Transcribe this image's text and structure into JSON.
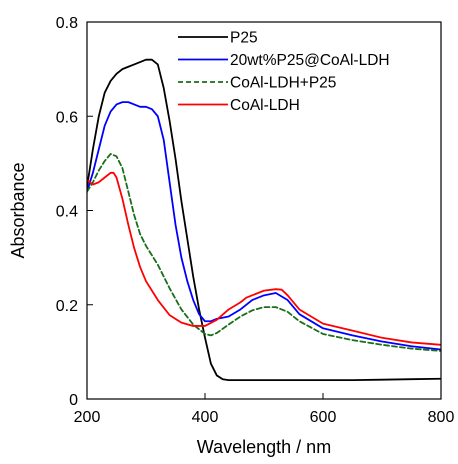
{
  "chart_data": {
    "type": "line",
    "title": "",
    "xlabel": "Wavelength / nm",
    "ylabel": "Absorbance",
    "xlim": [
      200,
      800
    ],
    "ylim": [
      0,
      0.8
    ],
    "xticks": [
      200,
      400,
      600,
      800
    ],
    "xtick_labels": [
      "200",
      "400",
      "600",
      "800"
    ],
    "yticks": [
      0,
      0.2,
      0.4,
      0.6,
      0.8
    ],
    "ytick_labels": [
      "0",
      "0.2",
      "0.4",
      "0.6",
      "0.8"
    ],
    "grid": false,
    "legend_position": "top-right",
    "series": [
      {
        "name": "P25",
        "color": "#000000",
        "dash": "solid",
        "x": [
          200,
          210,
          220,
          230,
          240,
          250,
          260,
          270,
          280,
          290,
          300,
          310,
          320,
          330,
          340,
          350,
          360,
          370,
          380,
          390,
          400,
          410,
          420,
          430,
          440,
          460,
          500,
          550,
          600,
          650,
          700,
          750,
          800
        ],
        "y": [
          0.45,
          0.53,
          0.6,
          0.65,
          0.675,
          0.69,
          0.7,
          0.705,
          0.71,
          0.715,
          0.72,
          0.72,
          0.71,
          0.66,
          0.59,
          0.51,
          0.42,
          0.34,
          0.26,
          0.19,
          0.13,
          0.075,
          0.05,
          0.042,
          0.04,
          0.04,
          0.04,
          0.04,
          0.04,
          0.04,
          0.041,
          0.042,
          0.043
        ]
      },
      {
        "name": "20wt%P25@CoAl-LDH",
        "color": "#0000ff",
        "dash": "solid",
        "x": [
          200,
          210,
          220,
          230,
          240,
          250,
          260,
          270,
          280,
          290,
          300,
          310,
          320,
          330,
          340,
          350,
          360,
          370,
          380,
          390,
          400,
          410,
          420,
          440,
          460,
          480,
          500,
          520,
          540,
          560,
          600,
          650,
          700,
          750,
          800
        ],
        "y": [
          0.44,
          0.48,
          0.53,
          0.58,
          0.61,
          0.625,
          0.63,
          0.63,
          0.625,
          0.62,
          0.62,
          0.615,
          0.6,
          0.55,
          0.46,
          0.37,
          0.3,
          0.25,
          0.21,
          0.18,
          0.165,
          0.165,
          0.17,
          0.175,
          0.19,
          0.21,
          0.22,
          0.225,
          0.21,
          0.18,
          0.15,
          0.135,
          0.122,
          0.112,
          0.105
        ]
      },
      {
        "name": "CoAl-LDH+P25",
        "color": "#1a6e1a",
        "dash": "dashed",
        "x": [
          200,
          210,
          220,
          230,
          240,
          250,
          260,
          270,
          280,
          290,
          300,
          320,
          340,
          360,
          380,
          400,
          410,
          420,
          440,
          460,
          480,
          500,
          520,
          540,
          560,
          600,
          650,
          700,
          750,
          800
        ],
        "y": [
          0.44,
          0.46,
          0.485,
          0.505,
          0.52,
          0.515,
          0.49,
          0.44,
          0.39,
          0.35,
          0.325,
          0.285,
          0.235,
          0.19,
          0.158,
          0.138,
          0.135,
          0.14,
          0.158,
          0.175,
          0.188,
          0.195,
          0.195,
          0.185,
          0.165,
          0.138,
          0.125,
          0.115,
          0.107,
          0.102
        ]
      },
      {
        "name": "CoAl-LDH",
        "color": "#ff0000",
        "dash": "solid",
        "x": [
          200,
          210,
          220,
          230,
          240,
          245,
          250,
          260,
          270,
          280,
          290,
          300,
          320,
          340,
          360,
          380,
          400,
          420,
          440,
          460,
          470,
          480,
          500,
          520,
          530,
          540,
          560,
          600,
          650,
          700,
          750,
          800
        ],
        "y": [
          0.465,
          0.455,
          0.46,
          0.47,
          0.48,
          0.48,
          0.47,
          0.425,
          0.37,
          0.32,
          0.28,
          0.25,
          0.21,
          0.178,
          0.162,
          0.155,
          0.155,
          0.168,
          0.19,
          0.205,
          0.215,
          0.22,
          0.23,
          0.233,
          0.232,
          0.22,
          0.19,
          0.16,
          0.145,
          0.13,
          0.12,
          0.115
        ]
      }
    ]
  }
}
